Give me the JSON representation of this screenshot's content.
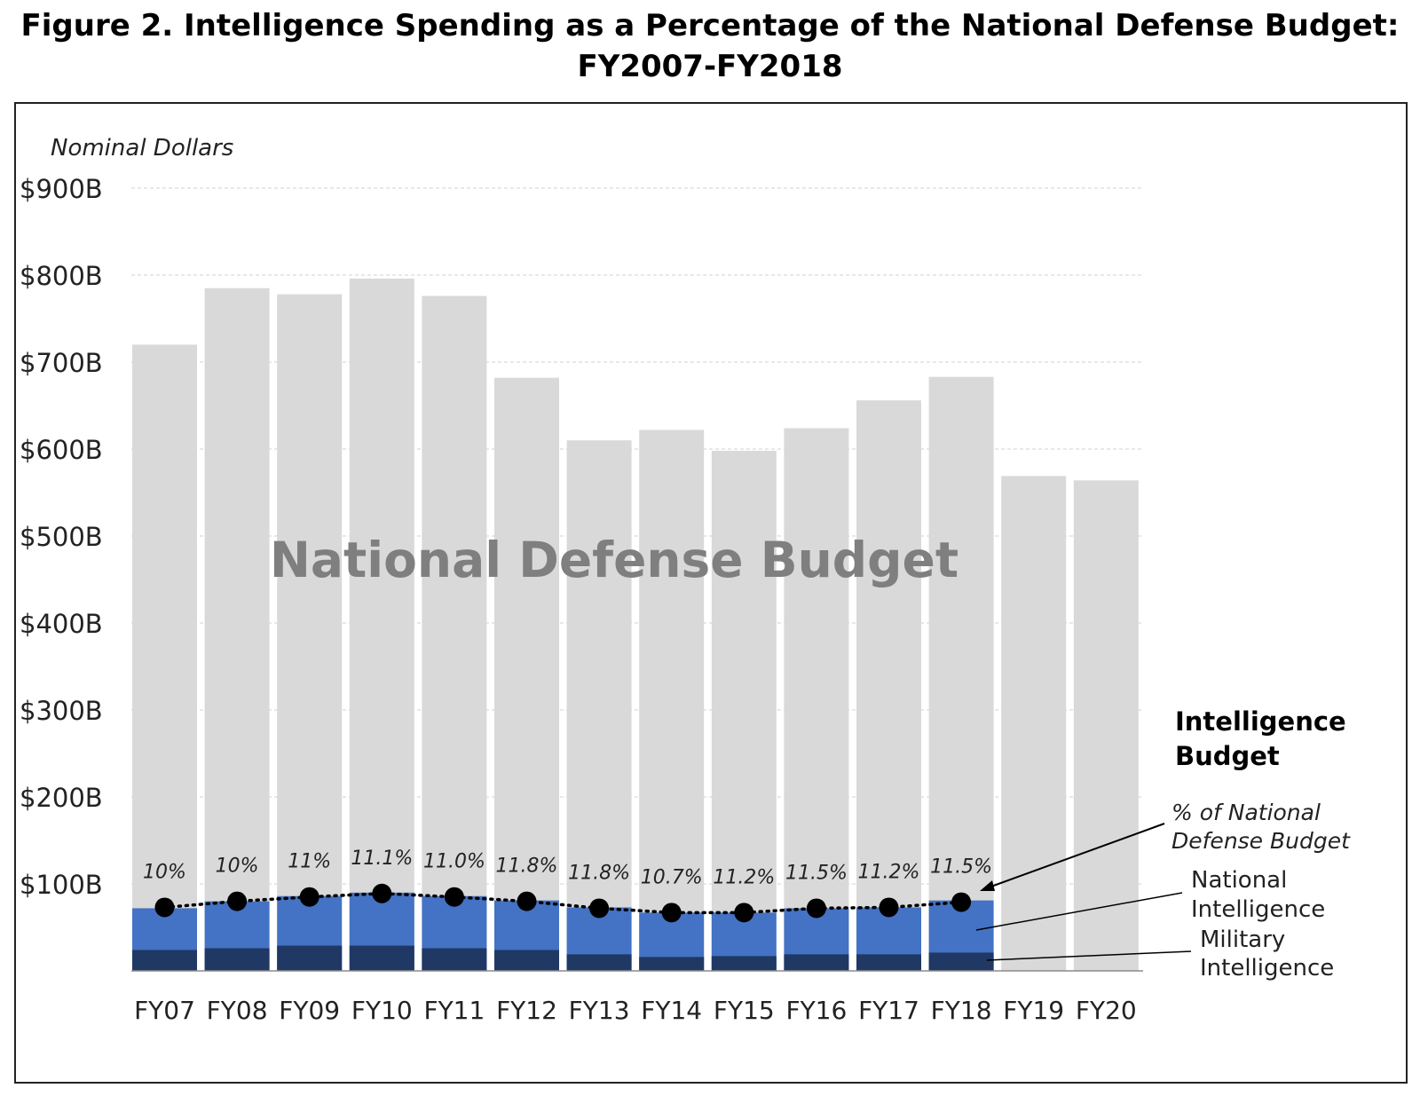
{
  "title_line1": "Figure 2. Intelligence Spending as a Percentage of the National Defense Budget:",
  "title_line2": "FY2007-FY2018",
  "chart_data": {
    "type": "bar",
    "ylabel": "Nominal Dollars",
    "ylim": [
      0,
      900
    ],
    "yticks": [
      "$100B",
      "$200B",
      "$300B",
      "$400B",
      "$500B",
      "$600B",
      "$700B",
      "$800B",
      "$900B"
    ],
    "grid": true,
    "categories": [
      "FY07",
      "FY08",
      "FY09",
      "FY10",
      "FY11",
      "FY12",
      "FY13",
      "FY14",
      "FY15",
      "FY16",
      "FY17",
      "FY18",
      "FY19",
      "FY20"
    ],
    "series": [
      {
        "name": "National Defense Budget",
        "unit": "$B",
        "values": [
          720,
          785,
          778,
          796,
          776,
          682,
          610,
          622,
          598,
          624,
          656,
          683,
          569,
          564
        ],
        "color": "#d9d9d9"
      },
      {
        "name": "National Intelligence",
        "unit": "$B",
        "values": [
          72,
          80,
          86,
          90,
          86,
          81,
          73,
          67,
          67,
          72,
          73,
          81,
          null,
          null
        ],
        "color": "#4472c4"
      },
      {
        "name": "Military Intelligence",
        "unit": "$B",
        "values": [
          24,
          26,
          29,
          29,
          26,
          24,
          19,
          16,
          17,
          19,
          19,
          21,
          null,
          null
        ],
        "color": "#203864"
      }
    ],
    "percent_series": {
      "name": "% of National Defense Budget",
      "labels": [
        "10%",
        "10%",
        "11%",
        "11.1%",
        "11.0%",
        "11.8%",
        "11.8%",
        "10.7%",
        "11.2%",
        "11.5%",
        "11.2%",
        "11.5%"
      ],
      "dot_values": [
        73,
        80,
        85,
        89,
        85,
        80,
        72,
        67,
        67,
        72,
        73,
        79
      ]
    },
    "annotations": {
      "center_label": "National Defense Budget",
      "legend_title_line1": "Intelligence",
      "legend_title_line2": "Budget",
      "pct_label_line1": "% of National",
      "pct_label_line2": "Defense Budget",
      "natl_label_line1": "National",
      "natl_label_line2": "Intelligence",
      "mil_label_line1": "Military",
      "mil_label_line2": "Intelligence"
    }
  }
}
